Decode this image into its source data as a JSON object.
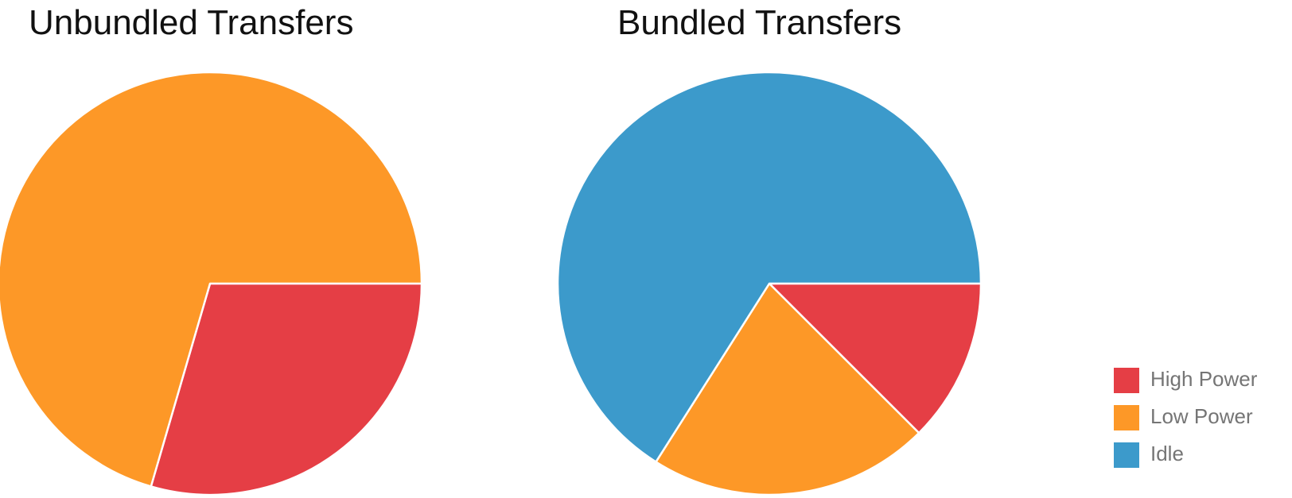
{
  "chart_data": [
    {
      "type": "pie",
      "title": "Unbundled Transfers",
      "slices": [
        {
          "label": "High Power",
          "value": 29.5
        },
        {
          "label": "Low Power",
          "value": 70.5
        },
        {
          "label": "Idle",
          "value": 0
        }
      ]
    },
    {
      "type": "pie",
      "title": "Bundled Transfers",
      "slices": [
        {
          "label": "High Power",
          "value": 12.5
        },
        {
          "label": "Low Power",
          "value": 21.5
        },
        {
          "label": "Idle",
          "value": 66
        }
      ]
    }
  ],
  "legend": {
    "placement": "bottom-right",
    "items": [
      {
        "label": "High Power",
        "color": "#e53e45"
      },
      {
        "label": "Low Power",
        "color": "#fd9827"
      },
      {
        "label": "Idle",
        "color": "#3c9acb"
      }
    ]
  }
}
